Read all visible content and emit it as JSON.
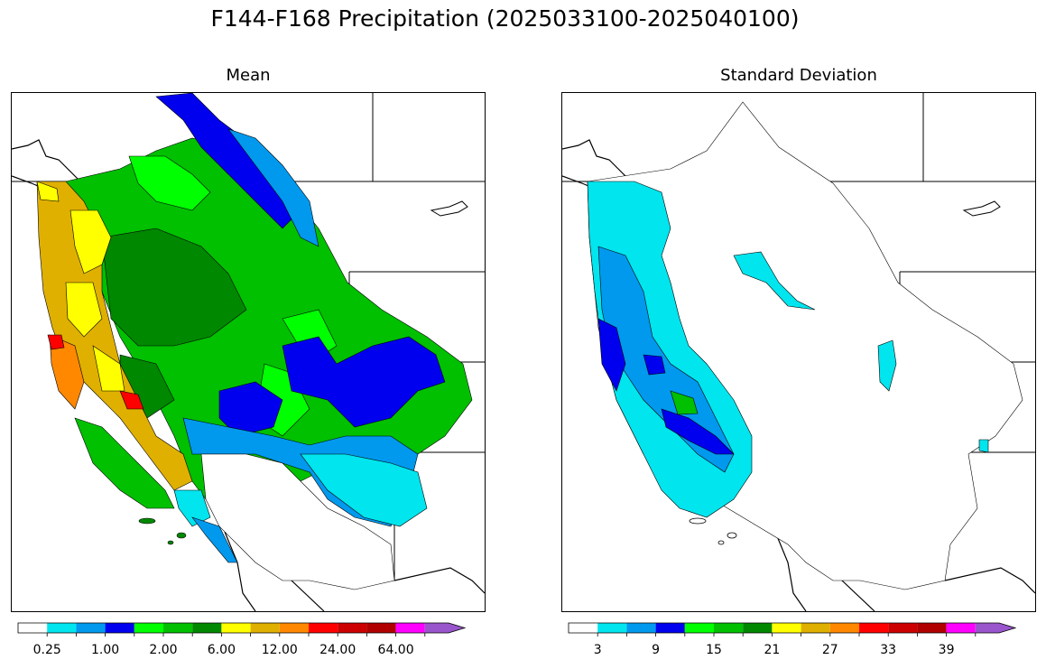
{
  "figure": {
    "title": "F144-F168 Precipitation (2025033100-2025040100)"
  },
  "panels": {
    "mean": {
      "title": "Mean",
      "colorbar": {
        "colors": [
          "#ffffff",
          "#00e5ee",
          "#0099ee",
          "#0000ee",
          "#00ff00",
          "#00c000",
          "#008800",
          "#ffff00",
          "#e0b000",
          "#ff8800",
          "#ff0000",
          "#cc0000",
          "#b00000",
          "#ff00ff",
          "#9955cc"
        ],
        "labels": [
          "0.25",
          "1.00",
          "2.00",
          "6.00",
          "12.00",
          "24.00",
          "64.00"
        ],
        "extend": "max"
      }
    },
    "stddev": {
      "title": "Standard Deviation",
      "colorbar": {
        "colors": [
          "#ffffff",
          "#00e5ee",
          "#0099ee",
          "#0000ee",
          "#00ff00",
          "#00c000",
          "#008800",
          "#ffff00",
          "#e0b000",
          "#ff8800",
          "#ff0000",
          "#cc0000",
          "#b00000",
          "#ff00ff",
          "#9955cc"
        ],
        "labels": [
          "3",
          "9",
          "15",
          "21",
          "27",
          "33",
          "39"
        ],
        "extend": "max"
      }
    }
  }
}
